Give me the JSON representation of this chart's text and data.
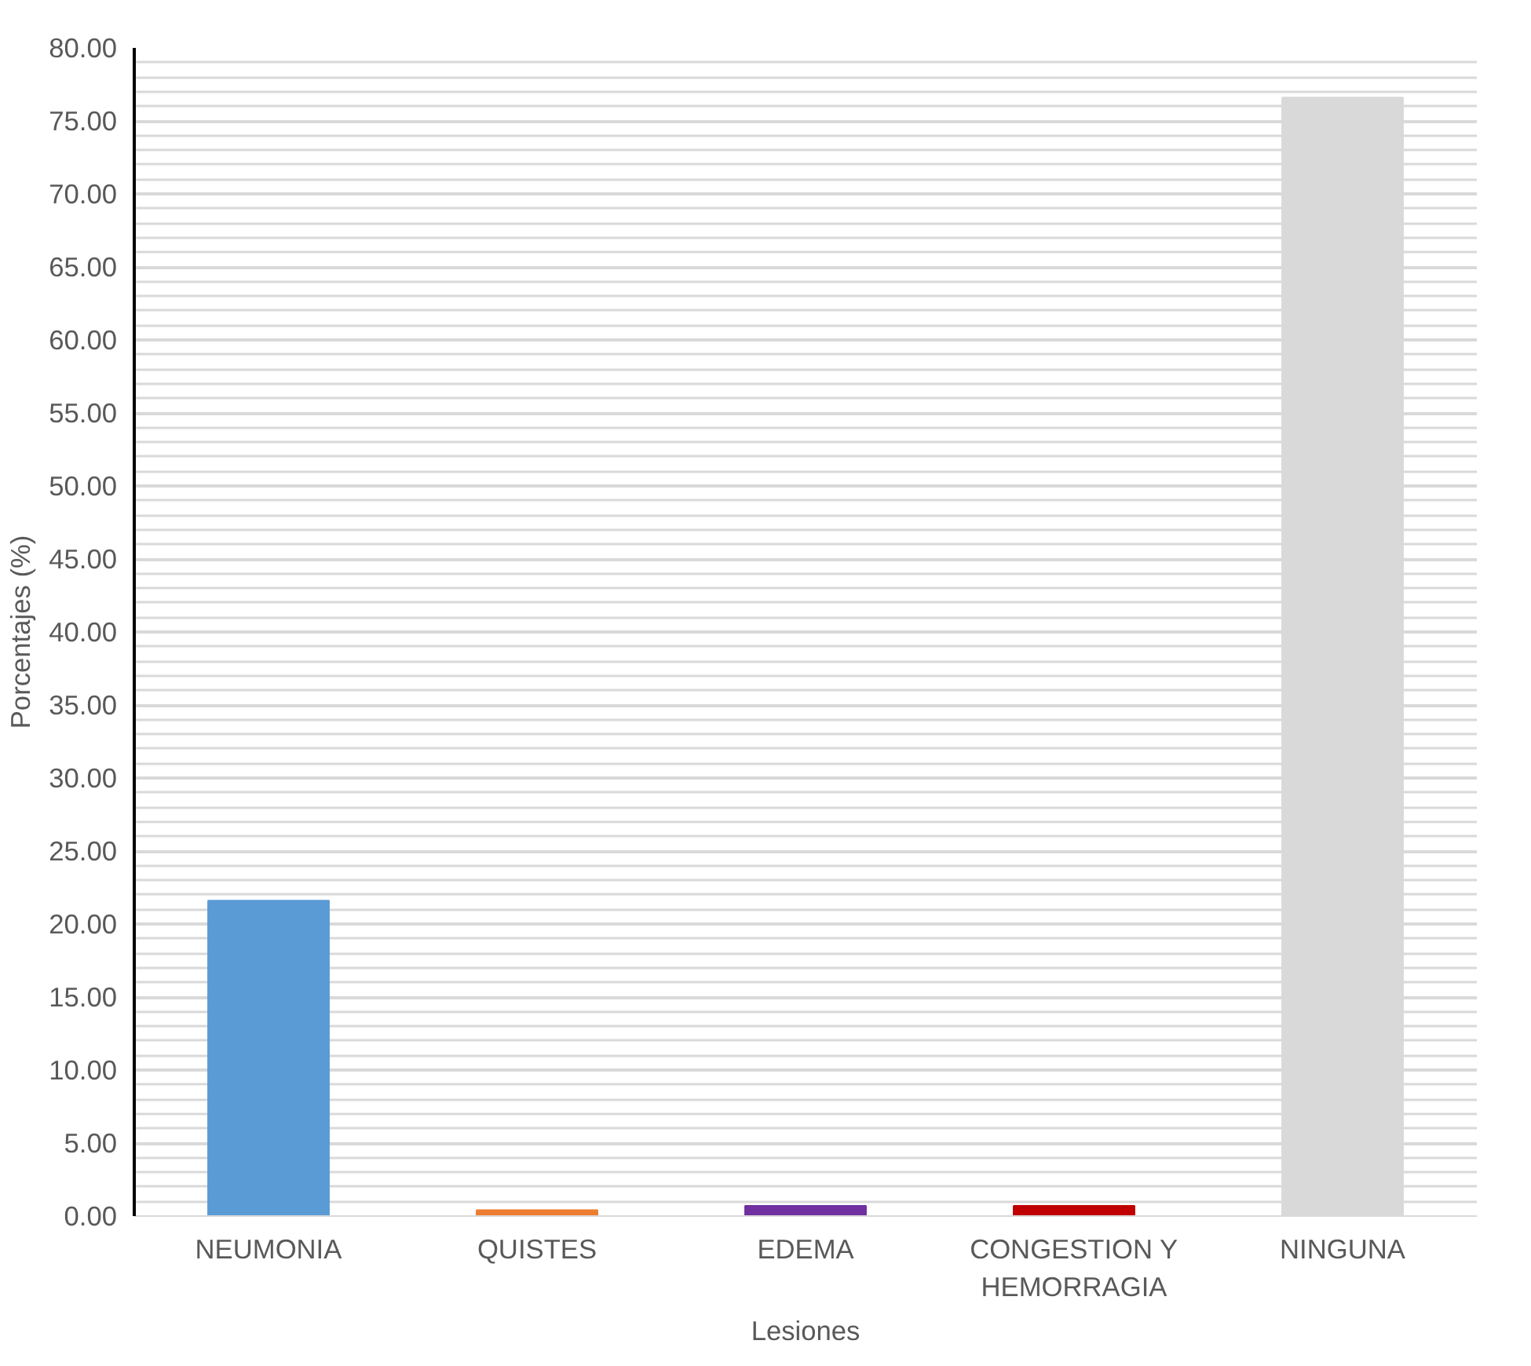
{
  "chart_data": {
    "type": "bar",
    "xlabel": "Lesiones",
    "ylabel": "Porcentajes (%)",
    "categories": [
      "NEUMONIA",
      "QUISTES",
      "EDEMA",
      "CONGESTION Y HEMORRAGIA",
      "NINGUNA"
    ],
    "values": [
      21.6,
      0.4,
      0.7,
      0.7,
      76.6
    ],
    "colors": [
      "#5b9bd5",
      "#ed7d31",
      "#7030a0",
      "#c00000",
      "#d9d9d9"
    ],
    "ylim": [
      0,
      80
    ],
    "yticks": [
      {
        "value": 0,
        "label": "0.00"
      },
      {
        "value": 5,
        "label": "5.00"
      },
      {
        "value": 10,
        "label": "10.00"
      },
      {
        "value": 15,
        "label": "15.00"
      },
      {
        "value": 20,
        "label": "20.00"
      },
      {
        "value": 25,
        "label": "25.00"
      },
      {
        "value": 30,
        "label": "30.00"
      },
      {
        "value": 35,
        "label": "35.00"
      },
      {
        "value": 40,
        "label": "40.00"
      },
      {
        "value": 45,
        "label": "45.00"
      },
      {
        "value": 50,
        "label": "50.00"
      },
      {
        "value": 55,
        "label": "55.00"
      },
      {
        "value": 60,
        "label": "60.00"
      },
      {
        "value": 65,
        "label": "65.00"
      },
      {
        "value": 70,
        "label": "70.00"
      },
      {
        "value": 75,
        "label": "75.00"
      },
      {
        "value": 80,
        "label": "80.00"
      }
    ],
    "grid": "y"
  }
}
